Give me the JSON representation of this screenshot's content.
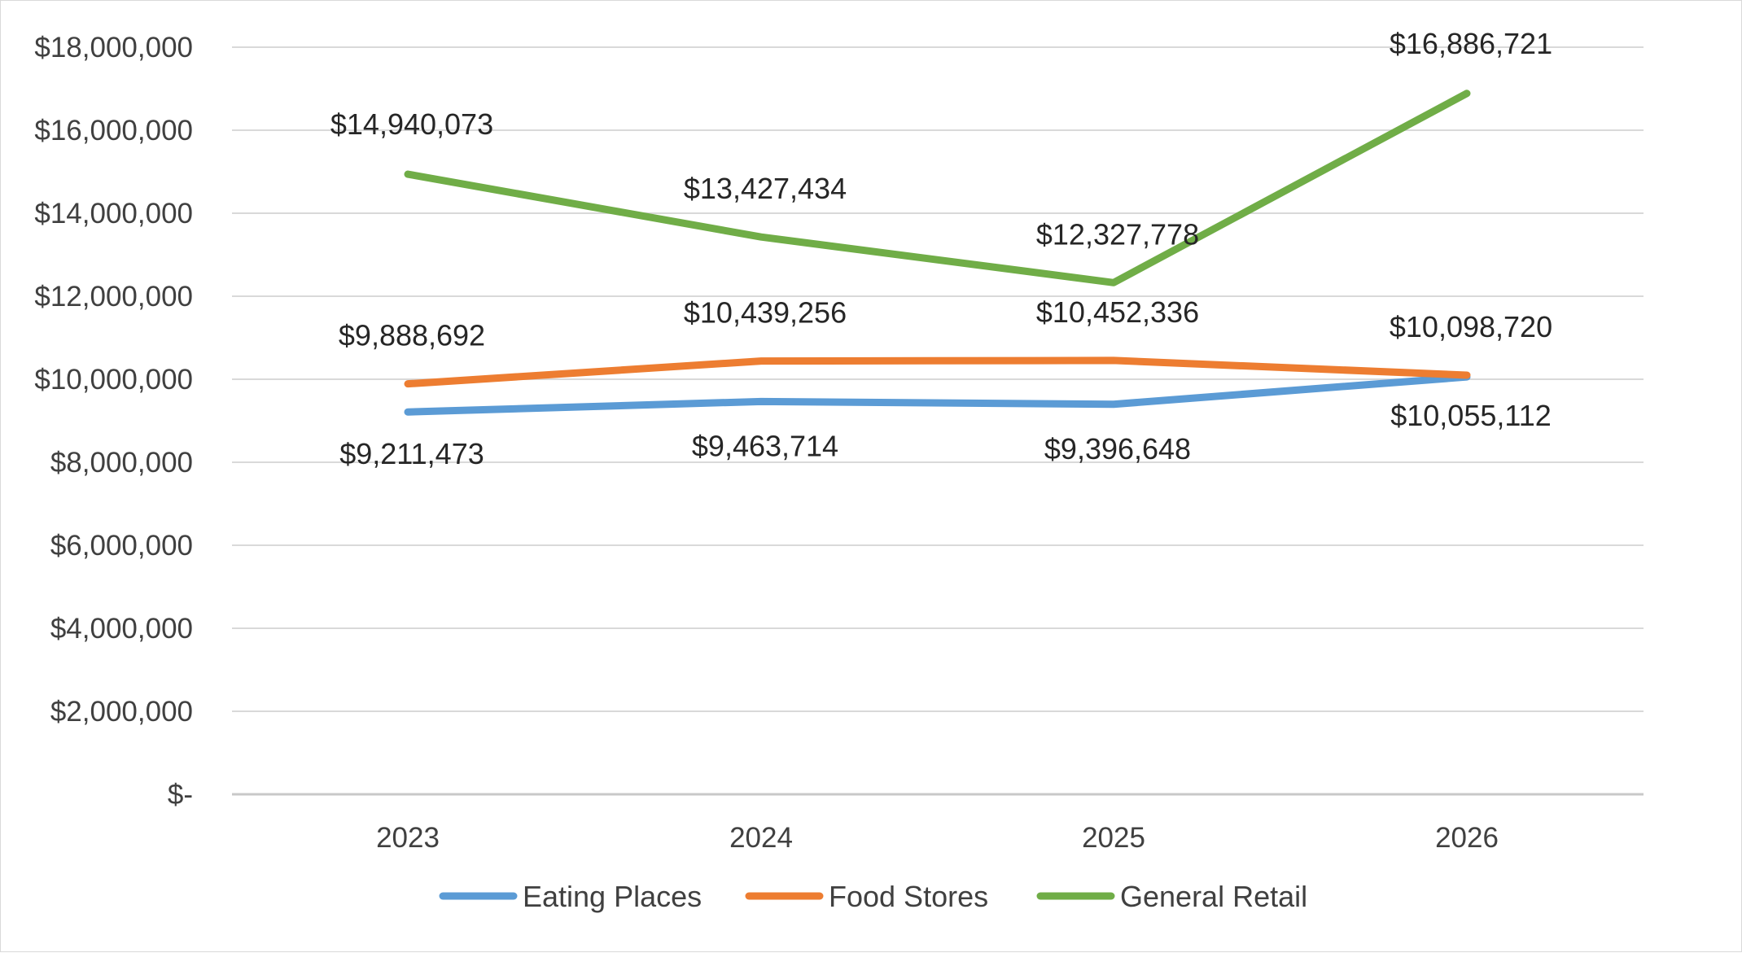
{
  "chart_data": {
    "type": "line",
    "title": "",
    "xlabel": "",
    "ylabel": "",
    "categories": [
      "2023",
      "2024",
      "2025",
      "2026"
    ],
    "ylim": [
      0,
      18000000
    ],
    "y_ticks": [
      0,
      2000000,
      4000000,
      6000000,
      8000000,
      10000000,
      12000000,
      14000000,
      16000000,
      18000000
    ],
    "y_tick_labels": [
      "$-",
      "$2,000,000",
      "$4,000,000",
      "$6,000,000",
      "$8,000,000",
      "$10,000,000",
      "$12,000,000",
      "$14,000,000",
      "$16,000,000",
      "$18,000,000"
    ],
    "grid": true,
    "legend_position": "bottom",
    "series": [
      {
        "name": "Eating Places",
        "color": "#5b9bd5",
        "values": [
          9211473,
          9463714,
          9396648,
          10055112
        ],
        "labels": [
          "$9,211,473",
          "$9,463,714",
          "$9,396,648",
          "$10,055,112"
        ]
      },
      {
        "name": "Food Stores",
        "color": "#ed7d31",
        "values": [
          9888692,
          10439256,
          10452336,
          10098720
        ],
        "labels": [
          "$9,888,692",
          "$10,439,256",
          "$10,452,336",
          "$10,098,720"
        ]
      },
      {
        "name": "General Retail",
        "color": "#70ad47",
        "values": [
          14940073,
          13427434,
          12327778,
          16886721
        ],
        "labels": [
          "$14,940,073",
          "$13,427,434",
          "$12,327,778",
          "$16,886,721"
        ]
      }
    ]
  }
}
